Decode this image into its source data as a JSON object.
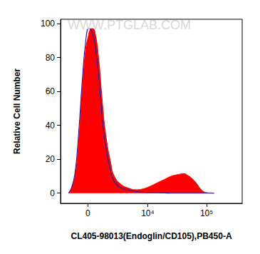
{
  "chart_data": {
    "type": "area",
    "xlabel": "CL405-98013(Endoglin/CD105),PB450-A",
    "ylabel": "Relative Cell Number",
    "annotation": "WWW.PTGLAB.COM",
    "log": "x",
    "grid": false,
    "x": [
      -1610,
      -1340,
      -1020,
      -720,
      -440,
      -160,
      50,
      110,
      270,
      380,
      550,
      840,
      1150,
      1470,
      1980,
      2400,
      3360,
      4570,
      6140,
      8210,
      10900,
      14400,
      19100,
      25200,
      33300,
      41700,
      47800,
      55100,
      66800,
      76800,
      88200,
      101000,
      134000
    ],
    "series": [
      {
        "type": "area",
        "color": "#ff0000",
        "values": [
          0,
          3,
          10,
          30,
          60,
          85,
          93,
          95,
          97,
          97,
          95,
          80,
          55,
          35,
          18,
          10,
          5,
          3,
          2,
          2.5,
          4,
          6,
          8,
          10,
          11,
          11.5,
          10.5,
          9,
          6,
          3,
          1,
          0.3,
          0
        ]
      },
      {
        "type": "line",
        "color": "#2323a8",
        "values": [
          0,
          3,
          12,
          35,
          65,
          90,
          97,
          97,
          96,
          94,
          88,
          70,
          45,
          28,
          13,
          7,
          3,
          2,
          1,
          0.5,
          0.3,
          0.2,
          0.1,
          0,
          0,
          0,
          0,
          0,
          0,
          0,
          0,
          0,
          0
        ]
      }
    ],
    "xlim": [
      -2500,
      400000
    ],
    "xticks": [
      0,
      {
        "value": 10000,
        "label": "10⁴"
      },
      {
        "value": 100000,
        "label": "10⁵"
      }
    ],
    "ylim": [
      -6,
      102.5
    ],
    "yticks": [
      0,
      20,
      40,
      60,
      80,
      100
    ]
  }
}
